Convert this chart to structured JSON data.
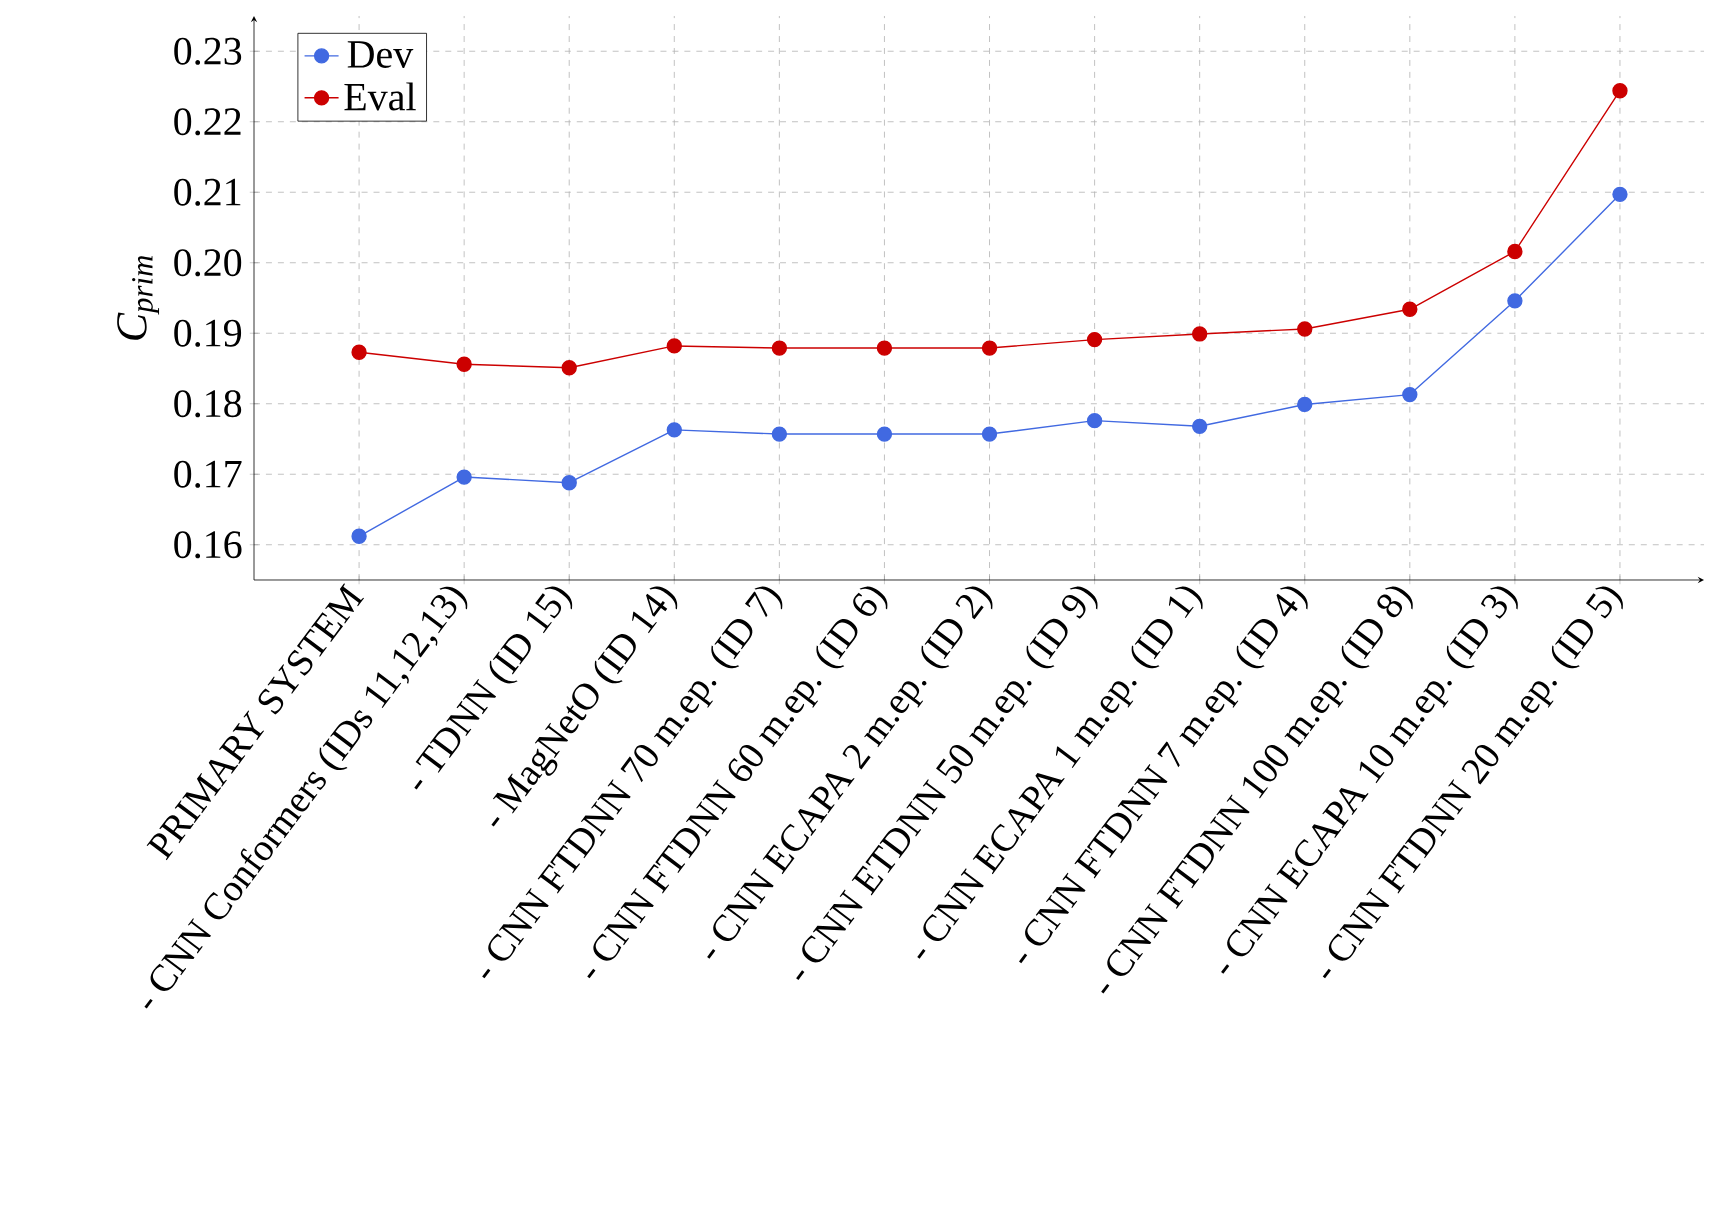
{
  "chart_data": {
    "type": "line",
    "ylabel": "C$_{prim}$",
    "categories": [
      "PRIMARY SYSTEM",
      "- CNN Conformers (IDs 11,12,13)",
      "- TDNN (ID 15)",
      "- MagNetO (ID 14)",
      "- CNN FTDNN 70 m.ep. (ID 7)",
      "- CNN FTDNN 60 m.ep. (ID 6)",
      "- CNN ECAPA 2 m.ep. (ID 2)",
      "- CNN ETDNN 50 m.ep. (ID 9)",
      "- CNN ECAPA 1 m.ep. (ID 1)",
      "- CNN FTDNN 7 m.ep. (ID 4)",
      "- CNN FTDNN 100 m.ep. (ID 8)",
      "- CNN ECAPA 10 m.ep. (ID 3)",
      "- CNN FTDNN 20 m.ep. (ID 5)"
    ],
    "series": [
      {
        "name": "Dev",
        "color": "#4169e1",
        "values": [
          0.1612,
          0.1696,
          0.1688,
          0.1763,
          0.1757,
          0.1757,
          0.1757,
          0.1776,
          0.1768,
          0.1799,
          0.1813,
          0.1946,
          0.2097
        ]
      },
      {
        "name": "Eval",
        "color": "#cc0000",
        "values": [
          0.1873,
          0.1856,
          0.1851,
          0.1882,
          0.1879,
          0.1879,
          0.1879,
          0.1891,
          0.1899,
          0.1906,
          0.1934,
          0.2016,
          0.2244
        ]
      }
    ],
    "ylim": [
      0.155,
      0.235
    ],
    "yticks": [
      0.16,
      0.17,
      0.18,
      0.19,
      {
        "value": 0.2,
        "label": "0.20"
      },
      0.21,
      0.22,
      0.23
    ],
    "grid": true,
    "legend": "top left",
    "marker": "circle",
    "line_style": "solid"
  }
}
